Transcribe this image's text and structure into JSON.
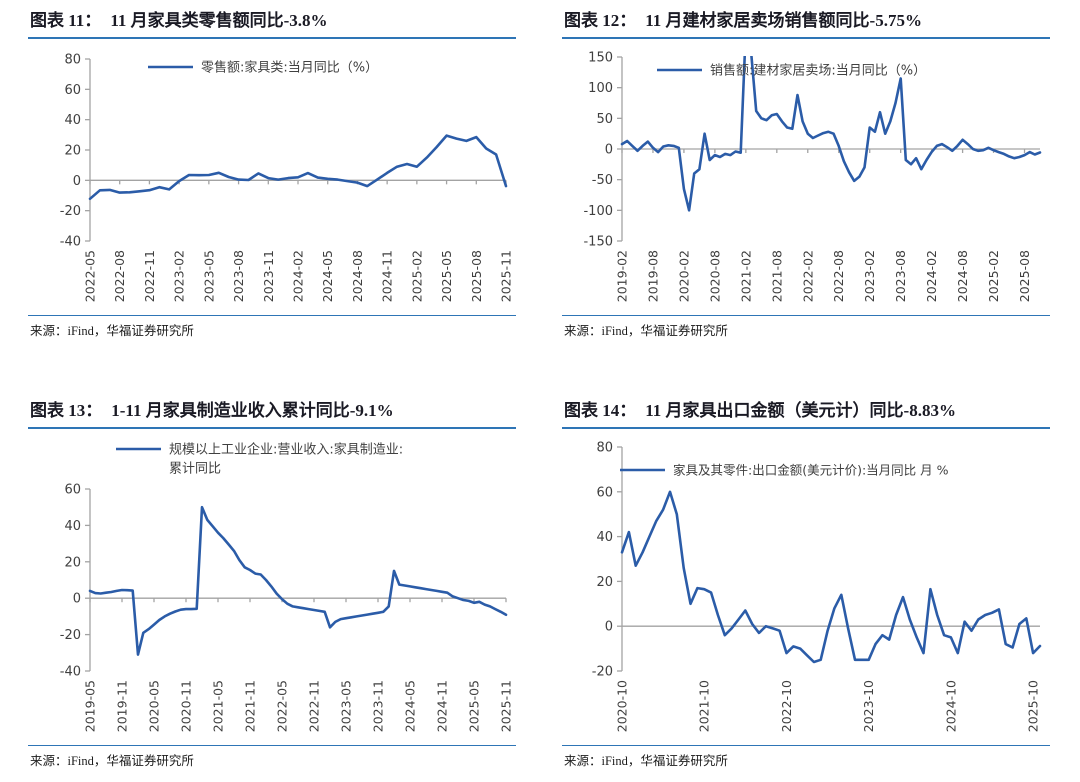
{
  "source_note": "来源：iFind，华福证券研究所",
  "colors": {
    "line": "#2B5CA8",
    "rule": "#2E75B6",
    "axis": "#A3A3A3",
    "tick_text": "#3F3F3F",
    "title_text": "#1A1A24"
  },
  "chart_data": [
    {
      "type": "line",
      "title_label": "图表 11：",
      "title": "11 月家具类零售额同比-3.8%",
      "legend_lines": [
        "零售额:家具类:当月同比（%）"
      ],
      "x_start": "2022-05",
      "xticks": [
        "2022-05",
        "2022-08",
        "2022-11",
        "2023-02",
        "2023-05",
        "2023-08",
        "2023-11",
        "2024-02",
        "2024-05",
        "2024-08",
        "2024-11",
        "2025-02",
        "2025-05",
        "2025-08",
        "2025-11"
      ],
      "values": [
        -12.2,
        -6.6,
        -6.3,
        -8.1,
        -7.9,
        -7.2,
        -6.5,
        -4.5,
        -6.0,
        -0.5,
        3.5,
        3.4,
        3.5,
        5.0,
        2.2,
        0.5,
        0.2,
        4.6,
        1.5,
        0.5,
        1.5,
        2.0,
        4.8,
        1.8,
        1.0,
        0.5,
        -0.5,
        -1.5,
        -3.8,
        0.5,
        4.9,
        9.0,
        10.8,
        9.0,
        15.0,
        22.0,
        29.5,
        27.5,
        26.0,
        28.5,
        21.0,
        17.0,
        -3.8
      ],
      "ylim": [
        -40,
        80
      ],
      "ystep": 20,
      "ylabel": "",
      "grid": false,
      "legend_position": "top-center"
    },
    {
      "type": "line",
      "title_label": "图表 12：",
      "title": "11 月建材家居卖场销售额同比-5.75%",
      "legend_lines": [
        "销售额:建材家居卖场:当月同比（%）"
      ],
      "x_start": "2019-02",
      "xticks": [
        "2019-02",
        "2019-08",
        "2020-02",
        "2020-08",
        "2021-02",
        "2021-08",
        "2022-02",
        "2022-08",
        "2023-02",
        "2023-08",
        "2024-02",
        "2024-08",
        "2025-02",
        "2025-08"
      ],
      "values": [
        8,
        13,
        5,
        -3,
        5,
        12,
        2,
        -5,
        4,
        6,
        5,
        2,
        -65,
        -100,
        -40,
        -33,
        25,
        -18,
        -10,
        -13,
        -8,
        -10,
        -4,
        -6,
        198,
        160,
        62,
        50,
        47,
        55,
        57,
        45,
        35,
        33,
        88,
        45,
        25,
        18,
        22,
        26,
        28,
        25,
        5,
        -20,
        -38,
        -52,
        -45,
        -30,
        35,
        28,
        60,
        25,
        45,
        75,
        115,
        -18,
        -25,
        -15,
        -33,
        -18,
        -5,
        5,
        8,
        3,
        -3,
        5,
        15,
        8,
        0,
        -3,
        -2,
        2,
        -2,
        -5,
        -8,
        -12,
        -15,
        -13,
        -10,
        -5,
        -9,
        -5.75
      ],
      "ylim": [
        -150,
        150
      ],
      "ystep": 50,
      "ylabel": "",
      "grid": false,
      "legend_position": "top-center",
      "clip_note": "spike at 2021-02/03 clipped at +150"
    },
    {
      "type": "line",
      "title_label": "图表 13：",
      "title": "1-11 月家具制造业收入累计同比-9.1%",
      "legend_lines": [
        "规模以上工业企业:营业收入:家具制造业:",
        "累计同比"
      ],
      "x_start": "2019-05",
      "xticks": [
        "2019-05",
        "2019-11",
        "2020-05",
        "2020-11",
        "2021-05",
        "2021-11",
        "2022-05",
        "2022-11",
        "2023-05",
        "2023-11",
        "2024-05",
        "2024-11",
        "2025-05",
        "2025-11"
      ],
      "values": [
        4.0,
        2.8,
        2.6,
        3.0,
        3.4,
        4.0,
        4.5,
        4.4,
        4.2,
        -31.0,
        -19.0,
        -17.0,
        -14.5,
        -12.0,
        -10.0,
        -8.5,
        -7.3,
        -6.3,
        -6.0,
        -6.0,
        -5.8,
        50.0,
        43.0,
        39.5,
        36.0,
        33.0,
        29.5,
        26.0,
        21.0,
        17.0,
        15.5,
        13.5,
        13.0,
        10.0,
        6.5,
        2.5,
        -0.5,
        -3.0,
        -4.5,
        -5.0,
        -5.5,
        -6.0,
        -6.5,
        -7.0,
        -7.5,
        -16.0,
        -13.0,
        -11.5,
        -11.0,
        -10.5,
        -10.0,
        -9.5,
        -9.0,
        -8.5,
        -8.0,
        -7.5,
        -4.5,
        15.0,
        7.5,
        7.0,
        6.5,
        6.0,
        5.5,
        5.0,
        4.5,
        4.0,
        3.5,
        3.0,
        1.0,
        0.0,
        -1.0,
        -1.5,
        -2.5,
        -2.0,
        -3.5,
        -4.5,
        -6.0,
        -7.5,
        -9.1
      ],
      "ylim": [
        -40,
        60
      ],
      "ystep": 20,
      "ylabel": "",
      "grid": false,
      "legend_position": "top-center"
    },
    {
      "type": "line",
      "title_label": "图表 14：",
      "title": "11 月家具出口金额（美元计）同比-8.83%",
      "legend_lines": [
        "家具及其零件:出口金额(美元计价):当月同比 月 %"
      ],
      "x_start": "2020-10",
      "xticks": [
        "2020-10",
        "2021-10",
        "2022-10",
        "2023-10",
        "2024-10",
        "2025-10"
      ],
      "values": [
        33,
        42,
        27,
        33,
        40,
        47,
        52,
        60,
        50,
        26,
        10,
        17,
        16.5,
        15,
        5,
        -4,
        -1,
        3,
        7,
        1,
        -3,
        0,
        -1,
        -2,
        -12,
        -9,
        -10,
        -13,
        -16,
        -15,
        -2,
        8,
        14,
        -1,
        -15,
        -15,
        -15,
        -8,
        -4,
        -6,
        5,
        13,
        3,
        -5,
        -12,
        16.5,
        5,
        -4,
        -5,
        -12,
        2,
        -2,
        3,
        5,
        6,
        7.5,
        -8,
        -9.5,
        1,
        3.5,
        -12,
        -8.83
      ],
      "ylim": [
        -20,
        80
      ],
      "ystep": 20,
      "ylabel": "",
      "grid": false,
      "legend_position": "top-center"
    }
  ]
}
